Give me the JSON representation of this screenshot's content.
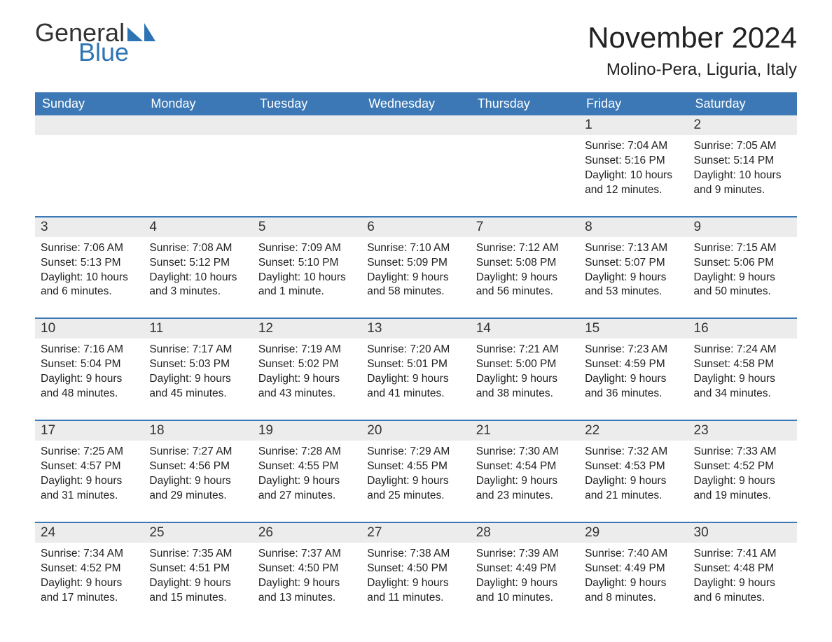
{
  "brand": {
    "word1": "General",
    "word2": "Blue",
    "color1": "#333333",
    "color2": "#2e74b5",
    "tri_color": "#2e74b5"
  },
  "title": "November 2024",
  "location": "Molino-Pera, Liguria, Italy",
  "dow_header_bg": "#3b78b5",
  "dow_header_fg": "#ffffff",
  "row_divider_color": "#3b78b5",
  "daynum_bg": "#ececec",
  "text_color": "#222222",
  "days_of_week": [
    "Sunday",
    "Monday",
    "Tuesday",
    "Wednesday",
    "Thursday",
    "Friday",
    "Saturday"
  ],
  "weeks": [
    [
      {
        "n": "",
        "sunrise": "",
        "sunset": "",
        "daylight": ""
      },
      {
        "n": "",
        "sunrise": "",
        "sunset": "",
        "daylight": ""
      },
      {
        "n": "",
        "sunrise": "",
        "sunset": "",
        "daylight": ""
      },
      {
        "n": "",
        "sunrise": "",
        "sunset": "",
        "daylight": ""
      },
      {
        "n": "",
        "sunrise": "",
        "sunset": "",
        "daylight": ""
      },
      {
        "n": "1",
        "sunrise": "Sunrise: 7:04 AM",
        "sunset": "Sunset: 5:16 PM",
        "daylight": "Daylight: 10 hours and 12 minutes."
      },
      {
        "n": "2",
        "sunrise": "Sunrise: 7:05 AM",
        "sunset": "Sunset: 5:14 PM",
        "daylight": "Daylight: 10 hours and 9 minutes."
      }
    ],
    [
      {
        "n": "3",
        "sunrise": "Sunrise: 7:06 AM",
        "sunset": "Sunset: 5:13 PM",
        "daylight": "Daylight: 10 hours and 6 minutes."
      },
      {
        "n": "4",
        "sunrise": "Sunrise: 7:08 AM",
        "sunset": "Sunset: 5:12 PM",
        "daylight": "Daylight: 10 hours and 3 minutes."
      },
      {
        "n": "5",
        "sunrise": "Sunrise: 7:09 AM",
        "sunset": "Sunset: 5:10 PM",
        "daylight": "Daylight: 10 hours and 1 minute."
      },
      {
        "n": "6",
        "sunrise": "Sunrise: 7:10 AM",
        "sunset": "Sunset: 5:09 PM",
        "daylight": "Daylight: 9 hours and 58 minutes."
      },
      {
        "n": "7",
        "sunrise": "Sunrise: 7:12 AM",
        "sunset": "Sunset: 5:08 PM",
        "daylight": "Daylight: 9 hours and 56 minutes."
      },
      {
        "n": "8",
        "sunrise": "Sunrise: 7:13 AM",
        "sunset": "Sunset: 5:07 PM",
        "daylight": "Daylight: 9 hours and 53 minutes."
      },
      {
        "n": "9",
        "sunrise": "Sunrise: 7:15 AM",
        "sunset": "Sunset: 5:06 PM",
        "daylight": "Daylight: 9 hours and 50 minutes."
      }
    ],
    [
      {
        "n": "10",
        "sunrise": "Sunrise: 7:16 AM",
        "sunset": "Sunset: 5:04 PM",
        "daylight": "Daylight: 9 hours and 48 minutes."
      },
      {
        "n": "11",
        "sunrise": "Sunrise: 7:17 AM",
        "sunset": "Sunset: 5:03 PM",
        "daylight": "Daylight: 9 hours and 45 minutes."
      },
      {
        "n": "12",
        "sunrise": "Sunrise: 7:19 AM",
        "sunset": "Sunset: 5:02 PM",
        "daylight": "Daylight: 9 hours and 43 minutes."
      },
      {
        "n": "13",
        "sunrise": "Sunrise: 7:20 AM",
        "sunset": "Sunset: 5:01 PM",
        "daylight": "Daylight: 9 hours and 41 minutes."
      },
      {
        "n": "14",
        "sunrise": "Sunrise: 7:21 AM",
        "sunset": "Sunset: 5:00 PM",
        "daylight": "Daylight: 9 hours and 38 minutes."
      },
      {
        "n": "15",
        "sunrise": "Sunrise: 7:23 AM",
        "sunset": "Sunset: 4:59 PM",
        "daylight": "Daylight: 9 hours and 36 minutes."
      },
      {
        "n": "16",
        "sunrise": "Sunrise: 7:24 AM",
        "sunset": "Sunset: 4:58 PM",
        "daylight": "Daylight: 9 hours and 34 minutes."
      }
    ],
    [
      {
        "n": "17",
        "sunrise": "Sunrise: 7:25 AM",
        "sunset": "Sunset: 4:57 PM",
        "daylight": "Daylight: 9 hours and 31 minutes."
      },
      {
        "n": "18",
        "sunrise": "Sunrise: 7:27 AM",
        "sunset": "Sunset: 4:56 PM",
        "daylight": "Daylight: 9 hours and 29 minutes."
      },
      {
        "n": "19",
        "sunrise": "Sunrise: 7:28 AM",
        "sunset": "Sunset: 4:55 PM",
        "daylight": "Daylight: 9 hours and 27 minutes."
      },
      {
        "n": "20",
        "sunrise": "Sunrise: 7:29 AM",
        "sunset": "Sunset: 4:55 PM",
        "daylight": "Daylight: 9 hours and 25 minutes."
      },
      {
        "n": "21",
        "sunrise": "Sunrise: 7:30 AM",
        "sunset": "Sunset: 4:54 PM",
        "daylight": "Daylight: 9 hours and 23 minutes."
      },
      {
        "n": "22",
        "sunrise": "Sunrise: 7:32 AM",
        "sunset": "Sunset: 4:53 PM",
        "daylight": "Daylight: 9 hours and 21 minutes."
      },
      {
        "n": "23",
        "sunrise": "Sunrise: 7:33 AM",
        "sunset": "Sunset: 4:52 PM",
        "daylight": "Daylight: 9 hours and 19 minutes."
      }
    ],
    [
      {
        "n": "24",
        "sunrise": "Sunrise: 7:34 AM",
        "sunset": "Sunset: 4:52 PM",
        "daylight": "Daylight: 9 hours and 17 minutes."
      },
      {
        "n": "25",
        "sunrise": "Sunrise: 7:35 AM",
        "sunset": "Sunset: 4:51 PM",
        "daylight": "Daylight: 9 hours and 15 minutes."
      },
      {
        "n": "26",
        "sunrise": "Sunrise: 7:37 AM",
        "sunset": "Sunset: 4:50 PM",
        "daylight": "Daylight: 9 hours and 13 minutes."
      },
      {
        "n": "27",
        "sunrise": "Sunrise: 7:38 AM",
        "sunset": "Sunset: 4:50 PM",
        "daylight": "Daylight: 9 hours and 11 minutes."
      },
      {
        "n": "28",
        "sunrise": "Sunrise: 7:39 AM",
        "sunset": "Sunset: 4:49 PM",
        "daylight": "Daylight: 9 hours and 10 minutes."
      },
      {
        "n": "29",
        "sunrise": "Sunrise: 7:40 AM",
        "sunset": "Sunset: 4:49 PM",
        "daylight": "Daylight: 9 hours and 8 minutes."
      },
      {
        "n": "30",
        "sunrise": "Sunrise: 7:41 AM",
        "sunset": "Sunset: 4:48 PM",
        "daylight": "Daylight: 9 hours and 6 minutes."
      }
    ]
  ]
}
